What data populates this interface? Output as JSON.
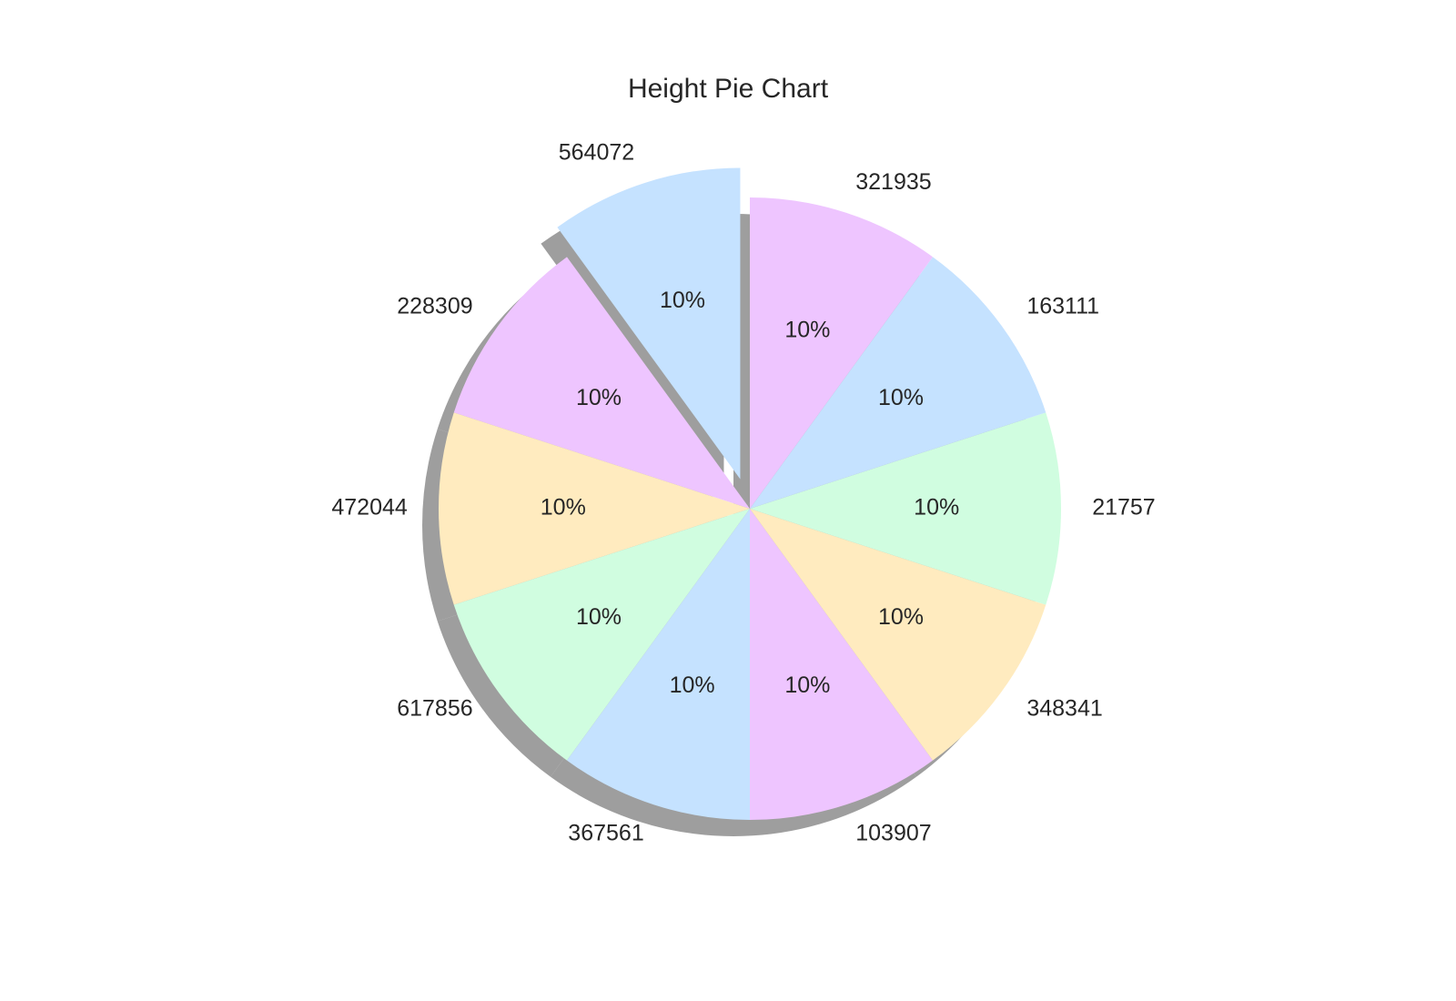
{
  "chart_data": {
    "type": "pie",
    "title": "Height Pie Chart",
    "categories": [
      "564072",
      "228309",
      "472044",
      "617856",
      "367561",
      "103907",
      "348341",
      "21757",
      "163111",
      "321935"
    ],
    "values": [
      10,
      10,
      10,
      10,
      10,
      10,
      10,
      10,
      10,
      10
    ],
    "percent_labels": [
      "10%",
      "10%",
      "10%",
      "10%",
      "10%",
      "10%",
      "10%",
      "10%",
      "10%",
      "10%"
    ],
    "colors": [
      "#c5e2ff",
      "#eec5ff",
      "#ffebbf",
      "#d0fde0",
      "#c5e2ff",
      "#eec5ff",
      "#ffebbf",
      "#d0fde0",
      "#c5e2ff",
      "#eec5ff"
    ],
    "start_angle_deg": 90,
    "direction": "counterclockwise",
    "exploded_category": "564072",
    "shadow": true
  }
}
